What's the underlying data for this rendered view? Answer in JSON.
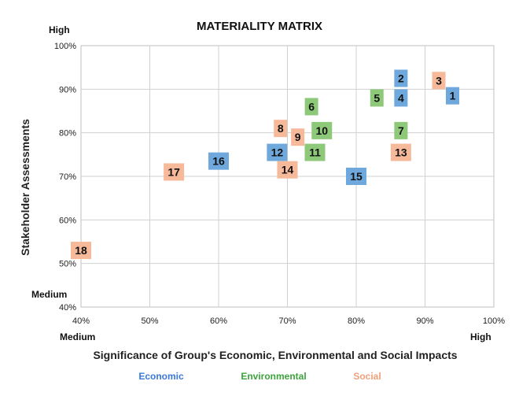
{
  "chart_data": {
    "type": "scatter",
    "title": "MATERIALITY MATRIX",
    "xlabel": "Significance of Group's Economic, Environmental and Social Impacts",
    "ylabel": "Stakeholder Assessments",
    "xlim": [
      40,
      100
    ],
    "ylim": [
      40,
      100
    ],
    "x_ticks": [
      "40%",
      "50%",
      "60%",
      "70%",
      "80%",
      "90%",
      "100%"
    ],
    "y_ticks": [
      "40%",
      "50%",
      "60%",
      "70%",
      "80%",
      "90%",
      "100%"
    ],
    "corner_labels": {
      "x_low": "Medium",
      "x_high": "High",
      "y_low": "Medium",
      "y_high": "High"
    },
    "grid": true,
    "legend_position": "bottom",
    "categories": [
      {
        "name": "Economic",
        "color": "#6fa8dc",
        "text_color": "#3c78d8"
      },
      {
        "name": "Environmental",
        "color": "#8ec97a",
        "text_color": "#3ca33c"
      },
      {
        "name": "Social",
        "color": "#f6b99a",
        "text_color": "#f0a07a"
      }
    ],
    "points": [
      {
        "label": "1",
        "x": 94,
        "y": 88.5,
        "category": "Economic"
      },
      {
        "label": "2",
        "x": 86.5,
        "y": 92.5,
        "category": "Economic"
      },
      {
        "label": "3",
        "x": 92,
        "y": 92,
        "category": "Social"
      },
      {
        "label": "4",
        "x": 86.5,
        "y": 88,
        "category": "Economic"
      },
      {
        "label": "5",
        "x": 83,
        "y": 88,
        "category": "Environmental"
      },
      {
        "label": "6",
        "x": 73.5,
        "y": 86,
        "category": "Environmental"
      },
      {
        "label": "7",
        "x": 86.5,
        "y": 80.5,
        "category": "Environmental"
      },
      {
        "label": "8",
        "x": 69,
        "y": 81,
        "category": "Social"
      },
      {
        "label": "9",
        "x": 71.5,
        "y": 79,
        "category": "Social"
      },
      {
        "label": "10",
        "x": 75,
        "y": 80.5,
        "category": "Environmental"
      },
      {
        "label": "11",
        "x": 74,
        "y": 75.5,
        "category": "Environmental"
      },
      {
        "label": "12",
        "x": 68.5,
        "y": 75.5,
        "category": "Economic"
      },
      {
        "label": "13",
        "x": 86.5,
        "y": 75.5,
        "category": "Social"
      },
      {
        "label": "14",
        "x": 70,
        "y": 71.5,
        "category": "Social"
      },
      {
        "label": "15",
        "x": 80,
        "y": 70,
        "category": "Economic"
      },
      {
        "label": "16",
        "x": 60,
        "y": 73.5,
        "category": "Economic"
      },
      {
        "label": "17",
        "x": 53.5,
        "y": 71,
        "category": "Social"
      },
      {
        "label": "18",
        "x": 40,
        "y": 53,
        "category": "Social"
      }
    ]
  }
}
